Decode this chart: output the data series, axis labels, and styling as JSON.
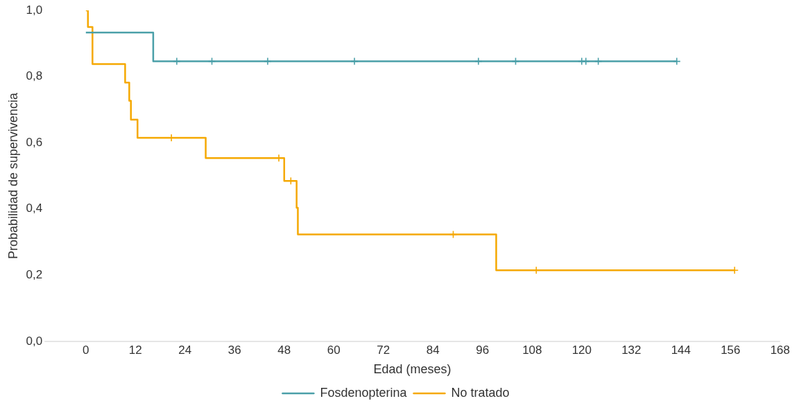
{
  "chart_data": {
    "type": "step",
    "xlabel": "Edad (meses)",
    "ylabel": "Probabilidad de supervivencia",
    "xlim": [
      -10,
      168
    ],
    "xticks": [
      0,
      12,
      24,
      36,
      48,
      60,
      72,
      84,
      96,
      108,
      120,
      132,
      144,
      156,
      168
    ],
    "ylim": [
      0,
      1
    ],
    "yticks": [
      {
        "value": 0,
        "label": "0,0"
      },
      {
        "value": 0.2,
        "label": "0,2"
      },
      {
        "value": 0.4,
        "label": "0,4"
      },
      {
        "value": 0.6,
        "label": "0,6"
      },
      {
        "value": 0.8,
        "label": "0,8"
      },
      {
        "value": 1,
        "label": "1,0"
      }
    ],
    "grid": false,
    "legend": "bottom",
    "series": [
      {
        "name": "Fosdenopterina",
        "color": "#4a9fa8",
        "x": [
          0,
          16.3,
          143
        ],
        "values": [
          0.933,
          0.846,
          0.846
        ]
      },
      {
        "name": "No tratado",
        "color": "#f5a800",
        "x": [
          0,
          0.5,
          1.6,
          9.5,
          10.5,
          10.9,
          12.5,
          29,
          48,
          51,
          51.3,
          99.3,
          157
        ],
        "values": [
          1.0,
          0.95,
          0.838,
          0.782,
          0.727,
          0.67,
          0.615,
          0.554,
          0.485,
          0.404,
          0.323,
          0.215,
          0.215
        ]
      },
      {
        "type": "scatter",
        "marker": "cross",
        "color": "#4a9fa8",
        "x": [
          22,
          30.5,
          44,
          65,
          95,
          104,
          120,
          121,
          124,
          143
        ],
        "values": [
          0.846,
          0.846,
          0.846,
          0.846,
          0.846,
          0.846,
          0.846,
          0.846,
          0.846,
          0.846
        ]
      },
      {
        "type": "scatter",
        "marker": "cross",
        "color": "#f5a800",
        "x": [
          20.7,
          46.7,
          49.6,
          88.9,
          109,
          157
        ],
        "values": [
          0.615,
          0.554,
          0.485,
          0.323,
          0.215,
          0.215
        ]
      }
    ]
  }
}
